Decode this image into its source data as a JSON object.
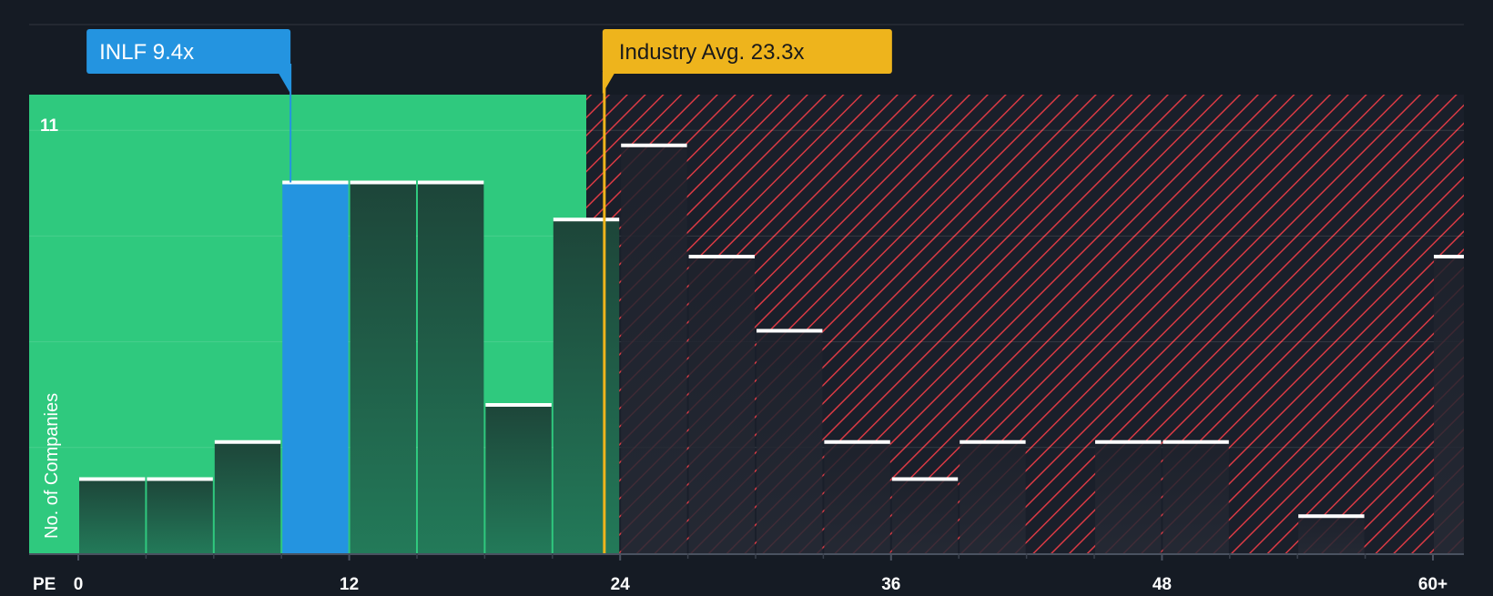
{
  "chart_data": {
    "type": "bar",
    "xlabel": "PE",
    "ylabel": "No. of Companies",
    "y_top_tick": "11",
    "ylim": [
      0,
      11.5
    ],
    "x_ticks": [
      {
        "value": 0,
        "label": "0"
      },
      {
        "value": 12,
        "label": "12"
      },
      {
        "value": 24,
        "label": "24"
      },
      {
        "value": 36,
        "label": "36"
      },
      {
        "value": 48,
        "label": "48"
      },
      {
        "value": 60,
        "label": "60+"
      }
    ],
    "bin_width": 3,
    "bins": [
      {
        "x0": 0,
        "x1": 3,
        "value": 2
      },
      {
        "x0": 3,
        "x1": 6,
        "value": 2
      },
      {
        "x0": 6,
        "x1": 9,
        "value": 3
      },
      {
        "x0": 9,
        "x1": 12,
        "value": 10,
        "highlight": true
      },
      {
        "x0": 12,
        "x1": 15,
        "value": 10
      },
      {
        "x0": 15,
        "x1": 18,
        "value": 10
      },
      {
        "x0": 18,
        "x1": 21,
        "value": 4
      },
      {
        "x0": 21,
        "x1": 24,
        "value": 9
      },
      {
        "x0": 24,
        "x1": 27,
        "value": 11
      },
      {
        "x0": 27,
        "x1": 30,
        "value": 8
      },
      {
        "x0": 30,
        "x1": 33,
        "value": 6
      },
      {
        "x0": 33,
        "x1": 36,
        "value": 3
      },
      {
        "x0": 36,
        "x1": 39,
        "value": 2
      },
      {
        "x0": 39,
        "x1": 42,
        "value": 3
      },
      {
        "x0": 42,
        "x1": 45,
        "value": 0
      },
      {
        "x0": 45,
        "x1": 48,
        "value": 3
      },
      {
        "x0": 48,
        "x1": 51,
        "value": 3
      },
      {
        "x0": 51,
        "x1": 54,
        "value": 0
      },
      {
        "x0": 54,
        "x1": 57,
        "value": 1
      },
      {
        "x0": 57,
        "x1": 60,
        "value": 0
      },
      {
        "x0": 60,
        "x1": 61.5,
        "value": 8
      }
    ],
    "company": {
      "label": "INLF 9.4x",
      "value": 9.4
    },
    "industry_avg": {
      "label": "Industry Avg. 23.3x",
      "value": 23.3
    },
    "fair_zone_end": 22.5
  },
  "colors": {
    "background": "#151b24",
    "green_zone": "#2fc97e",
    "bar_dark": "#1e4a3e",
    "bar_highlight": "#2494e0",
    "red_hatch": "#d93a44",
    "bar_cap": "#ffffff",
    "company_label_bg": "#2494e0",
    "industry_label_bg": "#eeb41c",
    "axis_text": "#ffffff"
  }
}
